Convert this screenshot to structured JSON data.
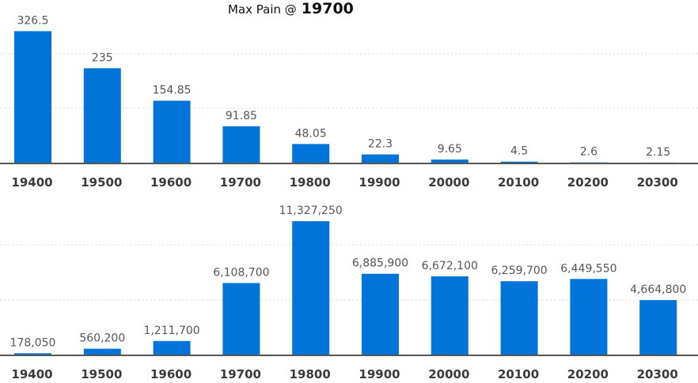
{
  "title": {
    "label": "Max Pain @",
    "value": "19700"
  },
  "colors": {
    "bar": "#0074d9",
    "axis": "#555555"
  },
  "chart_data": [
    {
      "type": "bar",
      "categories": [
        "19400",
        "19500",
        "19600",
        "19700",
        "19800",
        "19900",
        "20000",
        "20100",
        "20200",
        "20300"
      ],
      "values": [
        326.5,
        235,
        154.85,
        91.85,
        48.05,
        22.3,
        9.65,
        4.5,
        2.6,
        2.15
      ],
      "data_labels": [
        "326.5",
        "235",
        "154.85",
        "91.85",
        "48.05",
        "22.3",
        "9.65",
        "4.5",
        "2.6",
        "2.15"
      ],
      "ylim": [
        0,
        380
      ],
      "grid": true
    },
    {
      "type": "bar",
      "categories": [
        "19400",
        "19500",
        "19600",
        "19700",
        "19800",
        "19900",
        "20000",
        "20100",
        "20200",
        "20300"
      ],
      "values": [
        178050,
        560200,
        1211700,
        6108700,
        11327250,
        6885900,
        6672100,
        6259700,
        6449550,
        4664800
      ],
      "data_labels": [
        "178,050",
        "560,200",
        "1,211,700",
        "6,108,700",
        "11,327,250",
        "6,885,900",
        "6,672,100",
        "6,259,700",
        "6,449,550",
        "4,664,800"
      ],
      "ylim": [
        0,
        13000000
      ],
      "grid": true
    }
  ]
}
